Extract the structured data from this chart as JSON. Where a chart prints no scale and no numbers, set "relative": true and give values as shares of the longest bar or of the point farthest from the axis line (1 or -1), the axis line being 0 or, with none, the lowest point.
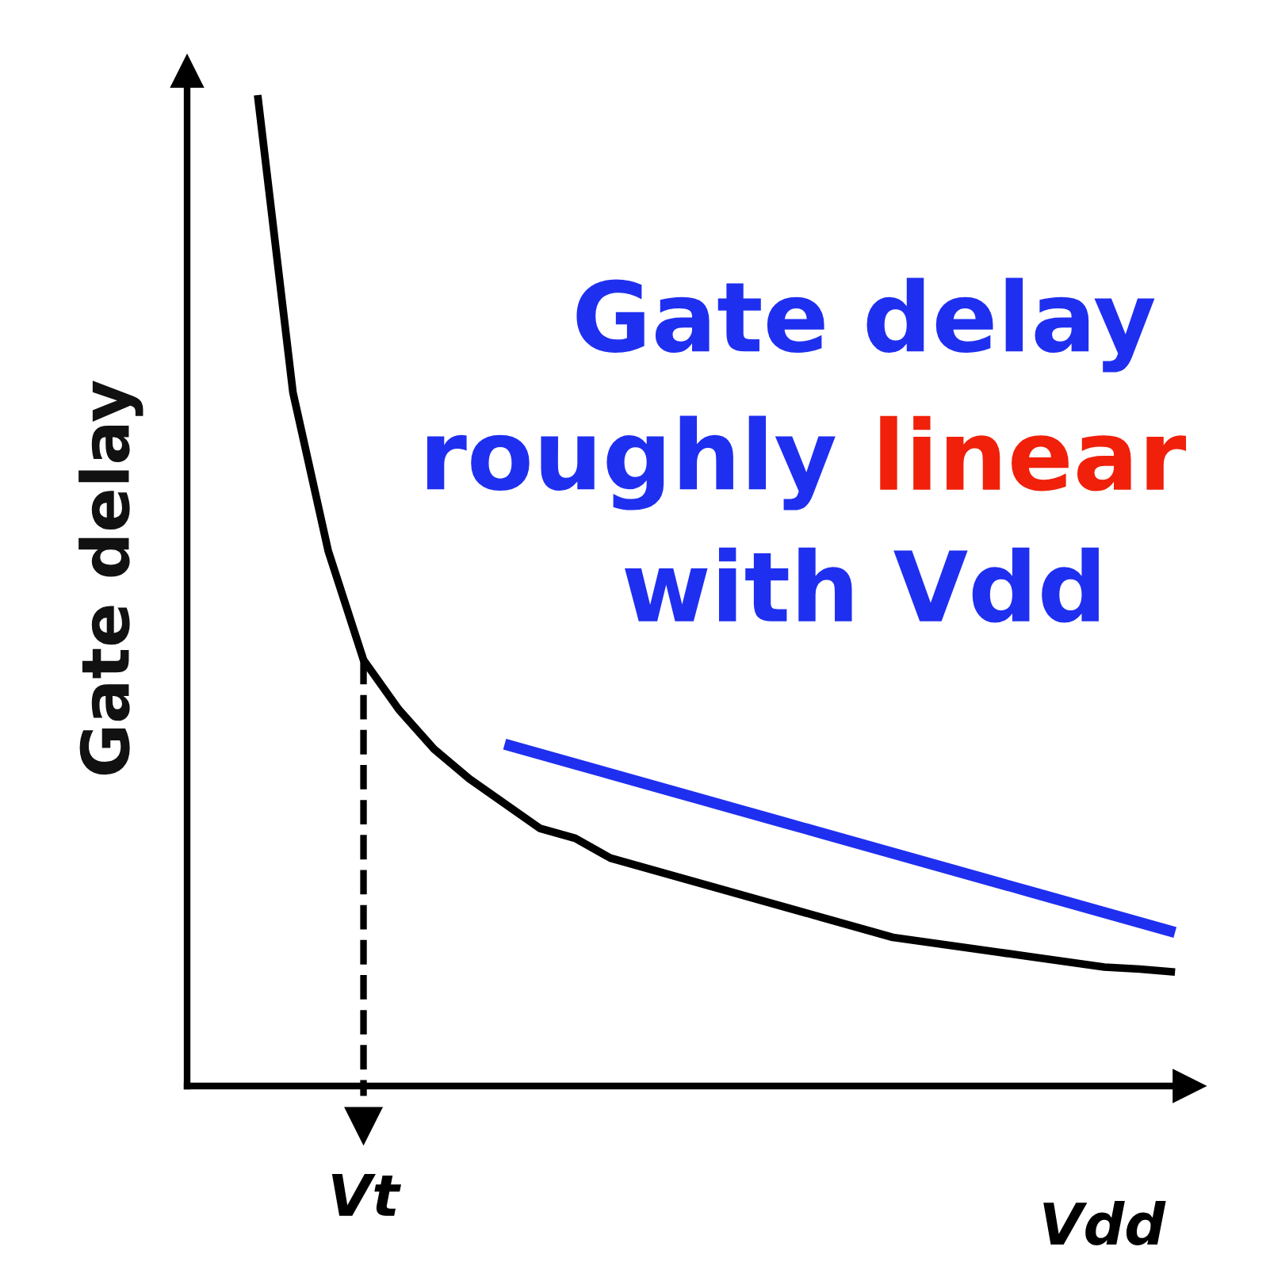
{
  "chart_data": {
    "type": "line",
    "relative": true,
    "ylabel": "Gate delay",
    "xlabel": "Vdd",
    "categories": [
      null,
      null,
      null,
      null,
      null,
      null,
      null,
      null,
      null,
      null,
      null,
      null,
      null,
      null,
      null,
      null,
      null,
      null,
      null,
      null,
      null,
      null,
      null,
      null,
      null,
      null,
      null
    ],
    "series": [
      {
        "color": "#000000",
        "values": [
          1.0,
          0.7,
          0.54,
          0.43,
          0.38,
          0.34,
          0.31,
          0.285,
          0.26,
          0.25,
          0.23,
          0.22,
          0.21,
          0.2,
          0.19,
          0.18,
          0.17,
          0.16,
          0.15,
          0.145,
          0.14,
          0.135,
          0.13,
          0.125,
          0.12,
          0.118,
          0.115
        ]
      },
      {
        "color": "#1f2ff0",
        "values": [
          null,
          null,
          null,
          null,
          null,
          null,
          null,
          0.345,
          0.335,
          0.325,
          0.315,
          0.305,
          0.295,
          0.285,
          0.275,
          0.265,
          0.255,
          0.245,
          0.235,
          0.225,
          0.215,
          0.205,
          0.195,
          0.185,
          0.175,
          0.165,
          0.155
        ]
      }
    ],
    "annotations": [
      "Gate delay",
      "roughly",
      "linear",
      "with Vdd",
      "Vt"
    ],
    "marker": "none",
    "line_style": "solid"
  }
}
